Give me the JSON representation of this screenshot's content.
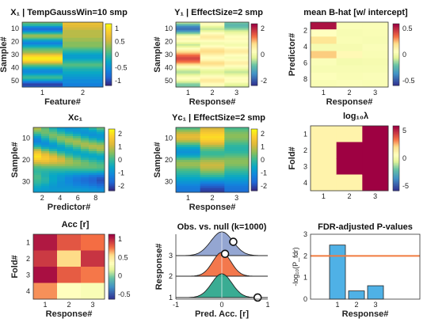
{
  "chart_data": [
    {
      "type": "heatmap",
      "title": "X₁ | TempGaussWin=10 smp",
      "xlabel": "Feature#",
      "ylabel": "Sample#",
      "x_ticks": [
        "1",
        "2"
      ],
      "y_ticks": [
        "10",
        "20",
        "30",
        "40",
        "50"
      ],
      "colorbar_ticks": [
        "1",
        "0.5",
        "0",
        "-0.5",
        "-1"
      ],
      "clim": [
        -1.3,
        1.3
      ],
      "dims": {
        "rows": 50,
        "cols": 2
      },
      "values": [
        [
          0.2,
          0.0,
          -0.1,
          -0.5,
          -0.8,
          -0.9,
          -0.7,
          -0.4,
          -0.1,
          0.2,
          0.4,
          0.3,
          0.1,
          -0.2,
          -0.4,
          -0.6,
          -0.7,
          -0.5,
          -0.3,
          -0.1,
          0.1,
          0.2,
          0.3,
          0.4,
          0.6,
          0.9,
          1.1,
          1.2,
          1.2,
          1.1,
          0.9,
          0.6,
          0.3,
          0.1,
          -0.1,
          -0.3,
          -0.5,
          -0.6,
          -0.6,
          -0.5,
          -0.3,
          -0.1,
          0.0,
          -0.1,
          -0.3,
          -0.6,
          -0.9,
          -1.1,
          -1.2,
          -1.0
        ],
        [
          0.8,
          0.8,
          0.7,
          0.7,
          0.6,
          0.6,
          0.5,
          0.5,
          0.5,
          0.5,
          0.5,
          0.5,
          0.4,
          0.4,
          0.4,
          0.3,
          0.3,
          0.3,
          0.3,
          0.2,
          0.1,
          0.0,
          -0.1,
          -0.2,
          -0.3,
          -0.4,
          -0.4,
          -0.4,
          -0.3,
          -0.2,
          -0.1,
          0.0,
          0.1,
          0.1,
          0.0,
          -0.1,
          -0.2,
          -0.2,
          -0.3,
          -0.3,
          -0.4,
          -0.4,
          -0.5,
          -0.5,
          -0.6,
          -0.6,
          -0.6,
          -0.7,
          -0.7,
          -0.7
        ]
      ]
    },
    {
      "type": "heatmap",
      "title": "Y₁ | EffectSize=2 smp",
      "xlabel": "Response#",
      "ylabel": "Sample#",
      "x_ticks": [
        "1",
        "2",
        "3"
      ],
      "y_ticks": [
        "10",
        "20",
        "30",
        "40",
        "50"
      ],
      "colorbar_ticks": [
        "2",
        "0",
        "-2"
      ],
      "clim": [
        -3,
        3
      ],
      "dims": {
        "rows": 50,
        "cols": 3
      },
      "values": [
        [
          -0.5,
          -1.0,
          -1.5,
          -2.0,
          -2.2,
          -2.3,
          -2.0,
          -1.5,
          -1.0,
          -0.5,
          0.0,
          0.3,
          0.5,
          0.5,
          0.3,
          0.0,
          -0.3,
          -0.5,
          -0.3,
          0.0,
          0.3,
          0.6,
          0.9,
          1.2,
          1.5,
          1.8,
          2.0,
          2.2,
          2.2,
          2.0,
          1.8,
          1.5,
          1.1,
          0.7,
          0.3,
          0.0,
          -0.3,
          -0.5,
          -0.6,
          -0.5,
          -0.3,
          0.0,
          0.2,
          0.3,
          0.1,
          -0.2,
          -0.5,
          -0.8,
          -1.0,
          -0.9
        ],
        [
          0.5,
          0.3,
          0.1,
          -0.2,
          -0.4,
          -0.5,
          -0.3,
          0.0,
          0.3,
          0.5,
          0.7,
          0.8,
          0.7,
          0.5,
          0.3,
          0.1,
          0.0,
          0.1,
          0.3,
          0.5,
          0.8,
          1.0,
          1.1,
          1.0,
          0.8,
          0.6,
          0.4,
          0.3,
          0.4,
          0.6,
          0.9,
          1.1,
          1.0,
          0.8,
          0.5,
          0.2,
          0.0,
          -0.2,
          -0.3,
          -0.2,
          0.0,
          0.2,
          0.4,
          0.6,
          0.8,
          0.8,
          0.6,
          0.4,
          0.2,
          0.1
        ],
        [
          -1.0,
          -1.2,
          -1.3,
          -1.2,
          -1.0,
          -0.8,
          -0.5,
          -0.3,
          -0.1,
          0.0,
          0.2,
          0.3,
          0.4,
          0.4,
          0.3,
          0.2,
          0.1,
          0.0,
          0.1,
          0.3,
          0.5,
          0.7,
          0.8,
          0.7,
          0.5,
          0.3,
          0.2,
          0.1,
          0.2,
          0.4,
          0.6,
          0.7,
          0.6,
          0.4,
          0.2,
          0.0,
          -0.2,
          -0.4,
          -0.5,
          -0.4,
          -0.2,
          0.0,
          0.2,
          0.3,
          0.4,
          0.3,
          0.1,
          -0.1,
          -0.3,
          -0.4
        ]
      ]
    },
    {
      "type": "heatmap",
      "title": "mean B-hat [w/ intercept]",
      "xlabel": "Response#",
      "ylabel": "Predictor#",
      "x_ticks": [
        "1",
        "2",
        "3"
      ],
      "y_ticks": [
        "2",
        "4",
        "6",
        "8"
      ],
      "colorbar_ticks": [
        "0.5",
        "0",
        "-0.5"
      ],
      "clim": [
        -0.8,
        0.8
      ],
      "dims": {
        "rows": 9,
        "cols": 3
      },
      "values": [
        [
          0.75,
          0.08,
          0.25,
          0.02,
          0.32,
          0.05,
          0.03,
          0.06,
          0.04
        ],
        [
          0.05,
          0.03,
          0.04,
          0.02,
          0.12,
          0.01,
          0.03,
          0.04,
          0.05
        ],
        [
          0.05,
          0.04,
          0.03,
          0.05,
          0.04,
          0.02,
          0.03,
          0.05,
          0.04
        ]
      ]
    },
    {
      "type": "heatmap",
      "title": "Xc₁",
      "xlabel": "Predictor#",
      "ylabel": "Sample#",
      "x_ticks": [
        "2",
        "4",
        "6",
        "8"
      ],
      "y_ticks": [
        "10",
        "20",
        "30"
      ],
      "colorbar_ticks": [
        "2",
        "1",
        "0",
        "-1",
        "-2"
      ],
      "clim": [
        -2.5,
        2.5
      ],
      "dims": {
        "rows": 30,
        "cols": 9
      },
      "values": [
        [
          0.9,
          0.6,
          0.2,
          -0.3,
          -0.8,
          -1.2,
          -1.3,
          -1.0,
          -0.5,
          0.2,
          1.0,
          1.6,
          2.0,
          2.2,
          2.0,
          1.6,
          1.1,
          0.6,
          0.2,
          0.0,
          -0.1,
          0.0,
          0.1,
          0.1,
          0.0,
          -0.1,
          -0.3,
          -0.5,
          -0.7,
          -0.8
        ],
        [
          0.3,
          0.4,
          0.4,
          0.2,
          -0.1,
          -0.5,
          -0.9,
          -1.1,
          -0.9,
          -0.4,
          0.3,
          0.9,
          1.4,
          1.7,
          1.8,
          1.6,
          1.2,
          0.7,
          0.3,
          0.0,
          -0.2,
          -0.3,
          -0.3,
          -0.2,
          -0.2,
          -0.3,
          -0.5,
          -0.7,
          -0.8,
          -0.8
        ],
        [
          -0.3,
          0.0,
          0.3,
          0.5,
          0.4,
          0.1,
          -0.3,
          -0.7,
          -0.9,
          -0.7,
          -0.2,
          0.4,
          0.9,
          1.3,
          1.5,
          1.4,
          1.1,
          0.7,
          0.3,
          0.0,
          -0.3,
          -0.5,
          -0.6,
          -0.6,
          -0.6,
          -0.7,
          -0.8,
          -0.9,
          -0.9,
          -0.8
        ],
        [
          -0.8,
          -0.5,
          -0.1,
          0.3,
          0.6,
          0.6,
          0.3,
          -0.1,
          -0.5,
          -0.7,
          -0.6,
          -0.2,
          0.3,
          0.8,
          1.1,
          1.2,
          1.0,
          0.7,
          0.3,
          0.0,
          -0.3,
          -0.6,
          -0.8,
          -0.9,
          -0.9,
          -1.0,
          -1.0,
          -1.0,
          -0.9,
          -0.8
        ],
        [
          -1.0,
          -0.9,
          -0.5,
          0.0,
          0.4,
          0.7,
          0.7,
          0.4,
          0.0,
          -0.4,
          -0.6,
          -0.5,
          -0.2,
          0.2,
          0.6,
          0.8,
          0.8,
          0.6,
          0.3,
          0.0,
          -0.4,
          -0.7,
          -1.0,
          -1.2,
          -1.2,
          -1.2,
          -1.1,
          -1.0,
          -0.9,
          -0.8
        ],
        [
          -0.9,
          -1.0,
          -0.8,
          -0.4,
          0.1,
          0.5,
          0.8,
          0.7,
          0.4,
          0.0,
          -0.4,
          -0.6,
          -0.5,
          -0.2,
          0.2,
          0.5,
          0.6,
          0.5,
          0.3,
          0.0,
          -0.4,
          -0.8,
          -1.2,
          -1.4,
          -1.5,
          -1.4,
          -1.3,
          -1.1,
          -0.9,
          -0.8
        ],
        [
          -0.6,
          -0.9,
          -1.0,
          -0.8,
          -0.4,
          0.1,
          0.5,
          0.8,
          0.8,
          0.5,
          0.0,
          -0.4,
          -0.6,
          -0.5,
          -0.2,
          0.2,
          0.4,
          0.4,
          0.3,
          0.0,
          -0.4,
          -0.9,
          -1.3,
          -1.6,
          -1.7,
          -1.6,
          -1.4,
          -1.2,
          -1.0,
          -0.8
        ],
        [
          -0.2,
          -0.6,
          -0.9,
          -1.0,
          -0.8,
          -0.3,
          0.2,
          0.6,
          0.9,
          0.8,
          0.4,
          -0.1,
          -0.5,
          -0.6,
          -0.4,
          -0.1,
          0.2,
          0.3,
          0.3,
          0.0,
          -0.4,
          -1.0,
          -1.5,
          -1.8,
          -1.9,
          -1.8,
          -1.6,
          -1.3,
          -1.1,
          -0.9
        ],
        [
          0.3,
          -0.2,
          -0.6,
          -0.9,
          -0.9,
          -0.6,
          -0.1,
          0.4,
          0.8,
          0.9,
          0.7,
          0.2,
          -0.3,
          -0.6,
          -0.6,
          -0.3,
          0.0,
          0.2,
          0.2,
          0.0,
          -0.5,
          -1.1,
          -1.6,
          -2.0,
          -2.1,
          -2.0,
          -1.8,
          -1.5,
          -1.2,
          -1.0
        ]
      ]
    },
    {
      "type": "heatmap",
      "title": "Yc₁ | EffectSize=2 smp",
      "xlabel": "Response#",
      "ylabel": "Sample#",
      "x_ticks": [
        "1",
        "2",
        "3"
      ],
      "y_ticks": [
        "10",
        "20",
        "30"
      ],
      "colorbar_ticks": [
        "2",
        "1",
        "0",
        "-1",
        "-2"
      ],
      "clim": [
        -2.5,
        2.5
      ],
      "dims": {
        "rows": 30,
        "cols": 3
      },
      "values": [
        [
          0.2,
          0.6,
          1.0,
          1.3,
          1.4,
          1.2,
          0.8,
          0.3,
          -0.2,
          -0.6,
          -0.9,
          -1.0,
          -0.8,
          -0.4,
          0.1,
          0.5,
          0.7,
          0.7,
          0.5,
          0.2,
          0.0,
          -0.2,
          -0.4,
          -0.6,
          -0.8,
          -1.0,
          -1.2,
          -1.4,
          -1.5,
          -1.5
        ],
        [
          1.2,
          1.5,
          1.8,
          2.0,
          2.1,
          2.0,
          1.7,
          1.3,
          0.9,
          0.5,
          0.2,
          0.0,
          0.0,
          0.2,
          0.5,
          0.8,
          1.0,
          1.1,
          1.0,
          0.8,
          0.5,
          0.2,
          -0.1,
          -0.5,
          -0.9,
          -1.3,
          -1.7,
          -2.0,
          -2.2,
          -2.3
        ],
        [
          0.1,
          0.3,
          0.5,
          0.6,
          0.6,
          0.5,
          0.3,
          0.1,
          -0.1,
          -0.2,
          -0.2,
          -0.1,
          0.1,
          0.3,
          0.5,
          0.6,
          0.6,
          0.5,
          0.3,
          0.1,
          -0.1,
          -0.3,
          -0.5,
          -0.7,
          -0.9,
          -1.1,
          -1.3,
          -1.5,
          -1.6,
          -1.7
        ]
      ]
    },
    {
      "type": "heatmap",
      "title": "log₁₀λ",
      "xlabel": "",
      "ylabel": "Fold#",
      "x_ticks": [
        "1",
        "2",
        "3"
      ],
      "y_ticks": [
        "1",
        "2",
        "3",
        "4"
      ],
      "colorbar_ticks": [
        "5",
        "0",
        "-5"
      ],
      "clim": [
        -5,
        5
      ],
      "dims": {
        "rows": 4,
        "cols": 3
      },
      "values": [
        [
          1.0,
          1.0,
          1.0,
          1.0
        ],
        [
          1.0,
          5.0,
          5.0,
          1.0
        ],
        [
          5.0,
          5.0,
          5.0,
          5.0
        ]
      ]
    },
    {
      "type": "heatmap",
      "title": "Acc [r]",
      "xlabel": "Response#",
      "ylabel": "Fold#",
      "x_ticks": [
        "1",
        "2",
        "3"
      ],
      "y_ticks": [
        "1",
        "2",
        "3",
        "4"
      ],
      "colorbar_ticks": [
        "1",
        "0.5",
        "0",
        "-0.5"
      ],
      "clim": [
        -0.9,
        1.0
      ],
      "dims": {
        "rows": 4,
        "cols": 3
      },
      "values": [
        [
          0.92,
          0.8,
          0.95,
          0.55
        ],
        [
          0.7,
          0.4,
          0.68,
          0.15
        ],
        [
          0.62,
          0.82,
          0.6,
          0.1
        ]
      ]
    },
    {
      "type": "area",
      "title": "Obs. vs. null (k=1000)",
      "xlabel": "Pred. Acc. [r]",
      "ylabel": "Response#",
      "x_ticks": [
        "-1",
        "0",
        "1"
      ],
      "y_ticks": [
        "1",
        "2",
        "3"
      ],
      "xlim": [
        -1,
        1
      ],
      "null_sd": [
        0.22,
        0.2,
        0.24
      ],
      "observed": [
        0.78,
        0.07,
        0.25
      ],
      "colors": [
        "#2aa58a",
        "#f36d3e",
        "#8c9fcf"
      ]
    },
    {
      "type": "bar",
      "title": "FDR-adjusted P-values",
      "xlabel": "Response#",
      "ylabel": "-log₁₀(P_fdr)",
      "categories": [
        "1",
        "2",
        "3"
      ],
      "values": [
        2.5,
        0.38,
        0.62
      ],
      "threshold": 2.0,
      "ylim": [
        0,
        3
      ],
      "y_ticks": [
        "0",
        "1",
        "2",
        "3"
      ],
      "bar_color": "#4fb1e6",
      "threshold_color": "#f07b3f"
    }
  ]
}
